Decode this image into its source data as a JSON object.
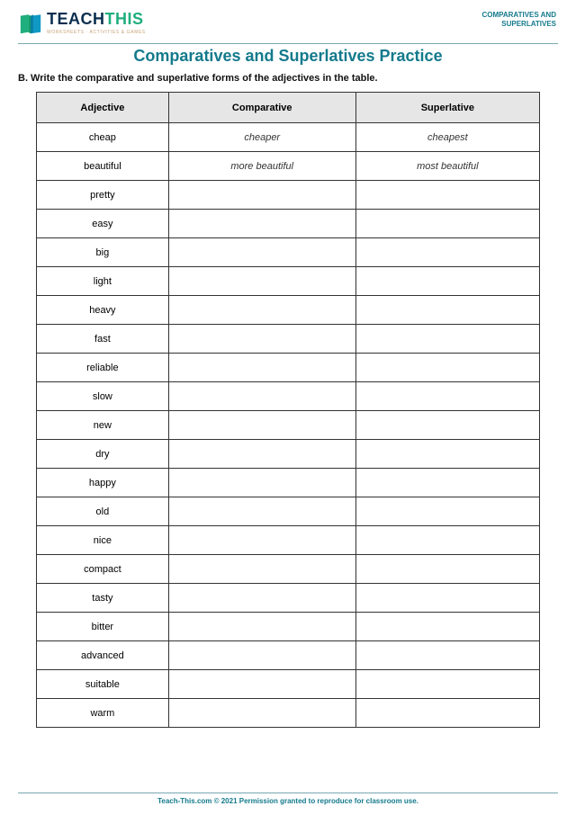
{
  "brand": {
    "word1": "TEACH",
    "word2": "THIS",
    "tagline": "WORKSHEETS · ACTIVITIES & GAMES",
    "color_word1": "#0a2e4f",
    "color_word2": "#1fae7e",
    "tagline_color": "#c9a37a"
  },
  "topic_label_line1": "COMPARATIVES AND",
  "topic_label_line2": "SUPERLATIVES",
  "title": "Comparatives and Superlatives Practice",
  "instructions": "B. Write the comparative and superlative forms of the adjectives in the table.",
  "table": {
    "columns": [
      "Adjective",
      "Comparative",
      "Superlative"
    ],
    "col_widths": [
      "33.3%",
      "33.3%",
      "33.4%"
    ],
    "header_bg": "#e6e6e6",
    "border_color": "#333333",
    "font_size": 11,
    "rows": [
      {
        "adjective": "cheap",
        "comparative": "cheaper",
        "superlative": "cheapest"
      },
      {
        "adjective": "beautiful",
        "comparative": "more beautiful",
        "superlative": "most beautiful"
      },
      {
        "adjective": "pretty",
        "comparative": "",
        "superlative": ""
      },
      {
        "adjective": "easy",
        "comparative": "",
        "superlative": ""
      },
      {
        "adjective": "big",
        "comparative": "",
        "superlative": ""
      },
      {
        "adjective": "light",
        "comparative": "",
        "superlative": ""
      },
      {
        "adjective": "heavy",
        "comparative": "",
        "superlative": ""
      },
      {
        "adjective": "fast",
        "comparative": "",
        "superlative": ""
      },
      {
        "adjective": "reliable",
        "comparative": "",
        "superlative": ""
      },
      {
        "adjective": "slow",
        "comparative": "",
        "superlative": ""
      },
      {
        "adjective": "new",
        "comparative": "",
        "superlative": ""
      },
      {
        "adjective": "dry",
        "comparative": "",
        "superlative": ""
      },
      {
        "adjective": "happy",
        "comparative": "",
        "superlative": ""
      },
      {
        "adjective": "old",
        "comparative": "",
        "superlative": ""
      },
      {
        "adjective": "nice",
        "comparative": "",
        "superlative": ""
      },
      {
        "adjective": "compact",
        "comparative": "",
        "superlative": ""
      },
      {
        "adjective": "tasty",
        "comparative": "",
        "superlative": ""
      },
      {
        "adjective": "bitter",
        "comparative": "",
        "superlative": ""
      },
      {
        "adjective": "advanced",
        "comparative": "",
        "superlative": ""
      },
      {
        "adjective": "suitable",
        "comparative": "",
        "superlative": ""
      },
      {
        "adjective": "warm",
        "comparative": "",
        "superlative": ""
      }
    ]
  },
  "footer": "Teach-This.com © 2021 Permission granted to reproduce for classroom use.",
  "accent_color": "#147a8c",
  "rule_color": "#7aa7b0",
  "background_color": "#ffffff"
}
